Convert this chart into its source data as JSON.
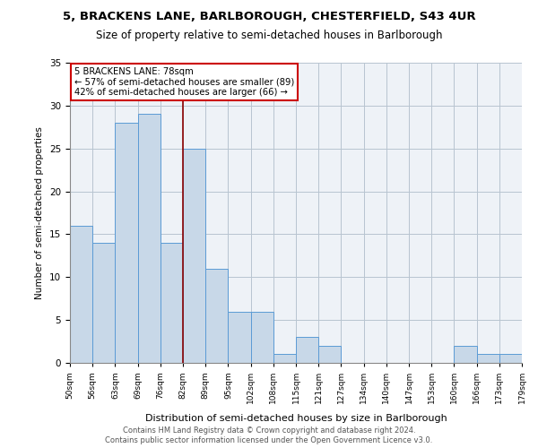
{
  "title1": "5, BRACKENS LANE, BARLBOROUGH, CHESTERFIELD, S43 4UR",
  "title2": "Size of property relative to semi-detached houses in Barlborough",
  "xlabel": "Distribution of semi-detached houses by size in Barlborough",
  "ylabel": "Number of semi-detached properties",
  "footnote1": "Contains HM Land Registry data © Crown copyright and database right 2024.",
  "footnote2": "Contains public sector information licensed under the Open Government Licence v3.0.",
  "bin_edges": [
    50,
    56,
    63,
    69,
    76,
    82,
    89,
    95,
    102,
    108,
    115,
    121,
    127,
    134,
    140,
    147,
    153,
    160,
    166,
    173,
    179
  ],
  "counts": [
    16,
    14,
    28,
    29,
    14,
    25,
    11,
    6,
    6,
    1,
    3,
    2,
    0,
    0,
    0,
    0,
    0,
    2,
    1,
    1
  ],
  "bin_labels": [
    "50sqm",
    "56sqm",
    "63sqm",
    "69sqm",
    "76sqm",
    "82sqm",
    "89sqm",
    "95sqm",
    "102sqm",
    "108sqm",
    "115sqm",
    "121sqm",
    "127sqm",
    "134sqm",
    "140sqm",
    "147sqm",
    "153sqm",
    "160sqm",
    "166sqm",
    "173sqm",
    "179sqm"
  ],
  "bar_color": "#c8d8e8",
  "bar_edge_color": "#5b9bd5",
  "annotation_line1": "5 BRACKENS LANE: 78sqm",
  "annotation_line2": "← 57% of semi-detached houses are smaller (89)",
  "annotation_line3": "42% of semi-detached houses are larger (66) →",
  "vline_color": "#8b0000",
  "annotation_box_color": "#ffffff",
  "annotation_box_edge": "#cc0000",
  "ylim": [
    0,
    35
  ],
  "background_color": "#eef2f7"
}
